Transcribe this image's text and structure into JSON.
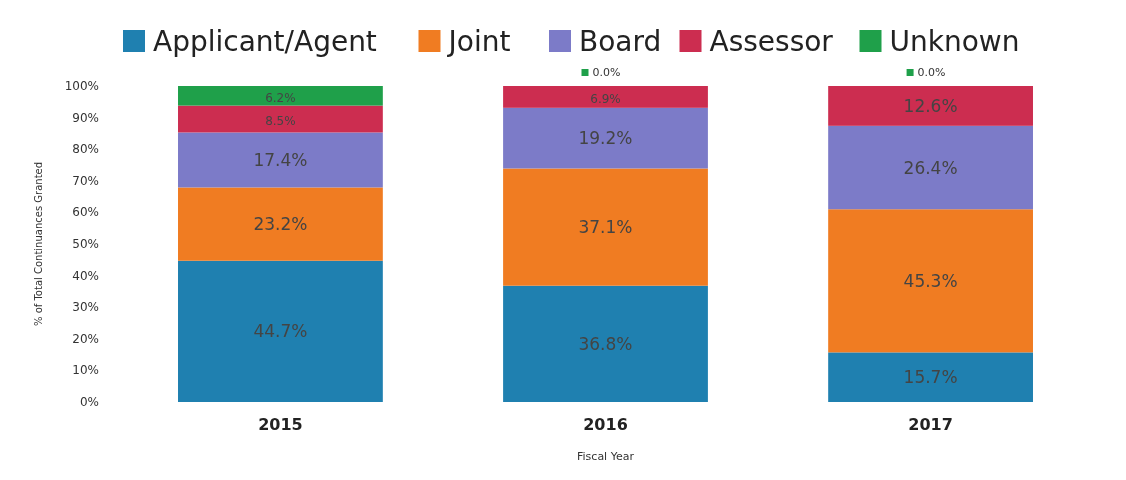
{
  "chart_data": {
    "type": "bar",
    "stacked": true,
    "categories": [
      "2015",
      "2016",
      "2017"
    ],
    "xlabel": "Fiscal Year",
    "ylabel": "% of Total Continuances Granted",
    "ylim": [
      0,
      100
    ],
    "yticks": [
      {
        "value": 0,
        "label": "0%"
      },
      {
        "value": 10,
        "label": "10%"
      },
      {
        "value": 20,
        "label": "20%"
      },
      {
        "value": 30,
        "label": "30%"
      },
      {
        "value": 40,
        "label": "40%"
      },
      {
        "value": 50,
        "label": "50%"
      },
      {
        "value": 60,
        "label": "60%"
      },
      {
        "value": 70,
        "label": "70%"
      },
      {
        "value": 80,
        "label": "80%"
      },
      {
        "value": 90,
        "label": "90%"
      },
      {
        "value": 100,
        "label": "100%"
      }
    ],
    "legend": "top",
    "grid": false,
    "series": [
      {
        "name": "Applicant/Agent",
        "color": "#1f80b0",
        "values": [
          44.7,
          36.8,
          15.7
        ],
        "value_labels": [
          "44.7%",
          "36.8%",
          "15.7%"
        ]
      },
      {
        "name": "Joint",
        "color": "#f07c22",
        "values": [
          23.2,
          37.1,
          45.3
        ],
        "value_labels": [
          "23.2%",
          "37.1%",
          "45.3%"
        ]
      },
      {
        "name": "Board",
        "color": "#7c7bc8",
        "values": [
          17.4,
          19.2,
          26.4
        ],
        "value_labels": [
          "17.4%",
          "19.2%",
          "26.4%"
        ]
      },
      {
        "name": "Assessor",
        "color": "#cc2d50",
        "values": [
          8.5,
          6.9,
          12.6
        ],
        "value_labels": [
          "8.5%",
          "6.9%",
          "12.6%"
        ]
      },
      {
        "name": "Unknown",
        "color": "#1fa04a",
        "values": [
          6.2,
          0.0,
          0.0
        ],
        "value_labels": [
          "6.2%",
          "0.0%",
          "0.0%"
        ]
      }
    ]
  }
}
